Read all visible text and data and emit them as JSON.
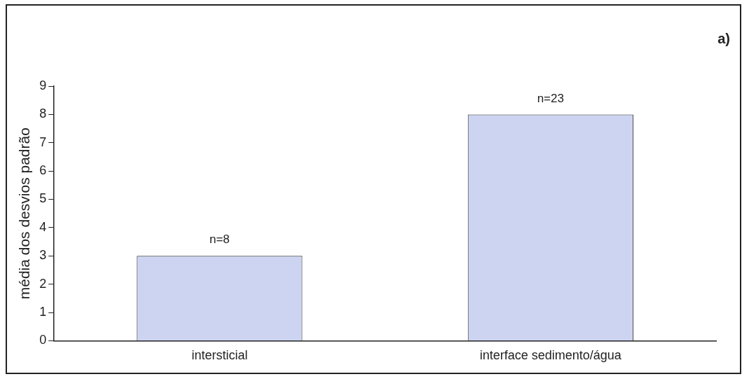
{
  "chart_data": {
    "type": "bar",
    "title": "a)",
    "ylabel": "média dos desvios padrão",
    "categories": [
      "intersticial",
      "interface sedimento/água"
    ],
    "values": [
      3,
      8
    ],
    "color": "#ccd4f2",
    "ylim": [
      0,
      9
    ],
    "yticks": [
      0,
      1,
      2,
      3,
      4,
      5,
      6,
      7,
      8,
      9
    ],
    "grid": false,
    "legend": false,
    "annotations": [
      {
        "text": "n=8",
        "x": "intersticial",
        "y": 3
      },
      {
        "text": "n=23",
        "x": "interface sedimento/água",
        "y": 8
      }
    ]
  }
}
